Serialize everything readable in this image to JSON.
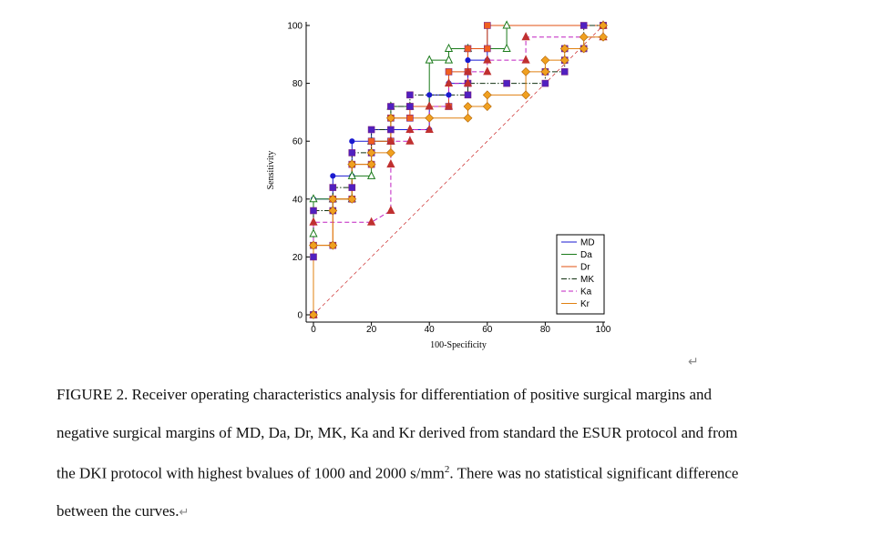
{
  "chart_data": {
    "type": "line",
    "subtype": "ROC step curves",
    "title": "",
    "xlabel": "100-Specificity",
    "ylabel": "Sensitivity",
    "xlim": [
      0,
      100
    ],
    "ylim": [
      0,
      100
    ],
    "xticks": [
      0,
      20,
      40,
      60,
      80,
      100
    ],
    "yticks": [
      0,
      20,
      40,
      60,
      80,
      100
    ],
    "xtick_labels": [
      "0",
      "20",
      "40",
      "60",
      "80",
      "100"
    ],
    "ytick_labels": [
      "0",
      "20",
      "40",
      "60",
      "80",
      "100"
    ],
    "legend_position": "bottom-right",
    "reference_line": {
      "from": [
        0,
        0
      ],
      "to": [
        100,
        100
      ],
      "style": "dashed",
      "color": "#d04040"
    },
    "series": [
      {
        "name": "MD",
        "color": "#1a1ad0",
        "dash": "solid",
        "marker": "circle",
        "marker_color": "#1a1ad0",
        "points": [
          [
            0,
            0
          ],
          [
            0,
            40
          ],
          [
            6.7,
            40
          ],
          [
            6.7,
            48
          ],
          [
            13.3,
            48
          ],
          [
            13.3,
            60
          ],
          [
            20,
            60
          ],
          [
            20,
            64
          ],
          [
            40,
            64
          ],
          [
            40,
            76
          ],
          [
            46.7,
            76
          ],
          [
            46.7,
            80
          ],
          [
            53.3,
            80
          ],
          [
            53.3,
            88
          ],
          [
            60,
            88
          ],
          [
            60,
            100
          ],
          [
            100,
            100
          ]
        ]
      },
      {
        "name": "Da",
        "color": "#1a7a1a",
        "dash": "solid",
        "marker": "triangle-open",
        "marker_color": "#1a7a1a",
        "points": [
          [
            0,
            0
          ],
          [
            0,
            28
          ],
          [
            0,
            40
          ],
          [
            6.7,
            40
          ],
          [
            13.3,
            40
          ],
          [
            13.3,
            48
          ],
          [
            20,
            48
          ],
          [
            20,
            60
          ],
          [
            26.7,
            60
          ],
          [
            26.7,
            72
          ],
          [
            33.3,
            72
          ],
          [
            40,
            72
          ],
          [
            40,
            88
          ],
          [
            46.7,
            88
          ],
          [
            46.7,
            92
          ],
          [
            53.3,
            92
          ],
          [
            66.7,
            92
          ],
          [
            66.7,
            100
          ],
          [
            100,
            100
          ]
        ]
      },
      {
        "name": "Dr",
        "color": "#e05010",
        "dash": "solid",
        "marker": "square",
        "marker_color": "#f06020",
        "points": [
          [
            0,
            0
          ],
          [
            0,
            24
          ],
          [
            6.7,
            24
          ],
          [
            6.7,
            40
          ],
          [
            13.3,
            40
          ],
          [
            13.3,
            52
          ],
          [
            20,
            52
          ],
          [
            20,
            60
          ],
          [
            26.7,
            60
          ],
          [
            26.7,
            68
          ],
          [
            33.3,
            68
          ],
          [
            33.3,
            72
          ],
          [
            46.7,
            72
          ],
          [
            46.7,
            84
          ],
          [
            53.3,
            84
          ],
          [
            53.3,
            92
          ],
          [
            60,
            92
          ],
          [
            60,
            100
          ],
          [
            100,
            100
          ]
        ]
      },
      {
        "name": "MK",
        "color": "#103010",
        "dash": "dashdot",
        "marker": "square",
        "marker_color": "#5020c0",
        "points": [
          [
            0,
            0
          ],
          [
            0,
            20
          ],
          [
            0,
            36
          ],
          [
            6.7,
            36
          ],
          [
            6.7,
            44
          ],
          [
            13.3,
            44
          ],
          [
            13.3,
            56
          ],
          [
            20,
            56
          ],
          [
            20,
            64
          ],
          [
            26.7,
            64
          ],
          [
            26.7,
            72
          ],
          [
            33.3,
            72
          ],
          [
            33.3,
            76
          ],
          [
            53.3,
            76
          ],
          [
            53.3,
            80
          ],
          [
            66.7,
            80
          ],
          [
            66.7,
            80
          ],
          [
            80,
            80
          ],
          [
            80,
            84
          ],
          [
            86.7,
            84
          ],
          [
            86.7,
            88
          ],
          [
            86.7,
            92
          ],
          [
            93.3,
            92
          ],
          [
            93.3,
            100
          ],
          [
            100,
            100
          ]
        ]
      },
      {
        "name": "Ka",
        "color": "#c020c0",
        "dash": "dashed",
        "marker": "triangle",
        "marker_color": "#c03030",
        "points": [
          [
            0,
            0
          ],
          [
            0,
            32
          ],
          [
            20,
            32
          ],
          [
            20,
            32
          ],
          [
            26.7,
            36
          ],
          [
            26.7,
            52
          ],
          [
            26.7,
            60
          ],
          [
            33.3,
            60
          ],
          [
            33.3,
            64
          ],
          [
            40,
            64
          ],
          [
            40,
            72
          ],
          [
            46.7,
            72
          ],
          [
            46.7,
            80
          ],
          [
            53.3,
            80
          ],
          [
            53.3,
            84
          ],
          [
            60,
            84
          ],
          [
            60,
            88
          ],
          [
            73.3,
            88
          ],
          [
            73.3,
            96
          ],
          [
            100,
            96
          ],
          [
            100,
            100
          ]
        ]
      },
      {
        "name": "Kr",
        "color": "#e08010",
        "dash": "solid",
        "marker": "diamond",
        "marker_color": "#f0a020",
        "points": [
          [
            0,
            0
          ],
          [
            0,
            24
          ],
          [
            6.7,
            24
          ],
          [
            6.7,
            36
          ],
          [
            6.7,
            40
          ],
          [
            13.3,
            40
          ],
          [
            13.3,
            52
          ],
          [
            20,
            52
          ],
          [
            20,
            56
          ],
          [
            26.7,
            56
          ],
          [
            26.7,
            68
          ],
          [
            40,
            68
          ],
          [
            53.3,
            68
          ],
          [
            53.3,
            72
          ],
          [
            60,
            72
          ],
          [
            60,
            76
          ],
          [
            73.3,
            76
          ],
          [
            73.3,
            84
          ],
          [
            80,
            84
          ],
          [
            80,
            88
          ],
          [
            86.7,
            88
          ],
          [
            86.7,
            92
          ],
          [
            93.3,
            92
          ],
          [
            93.3,
            96
          ],
          [
            100,
            96
          ],
          [
            100,
            100
          ]
        ]
      }
    ]
  },
  "caption": {
    "line1": "FIGURE 2. Receiver operating characteristics analysis for differentiation of positive surgical margins and",
    "line2": "negative surgical margins of MD, Da, Dr, MK, Ka and Kr derived from standard the ESUR protocol and from",
    "line3_pre": "the DKI protocol with highest bvalues of 1000 and 2000 s/mm",
    "line3_sup": "2",
    "line3_post": ". There was no statistical significant difference",
    "line4": "between the curves."
  },
  "marks": {
    "pilcrow": "↵"
  }
}
